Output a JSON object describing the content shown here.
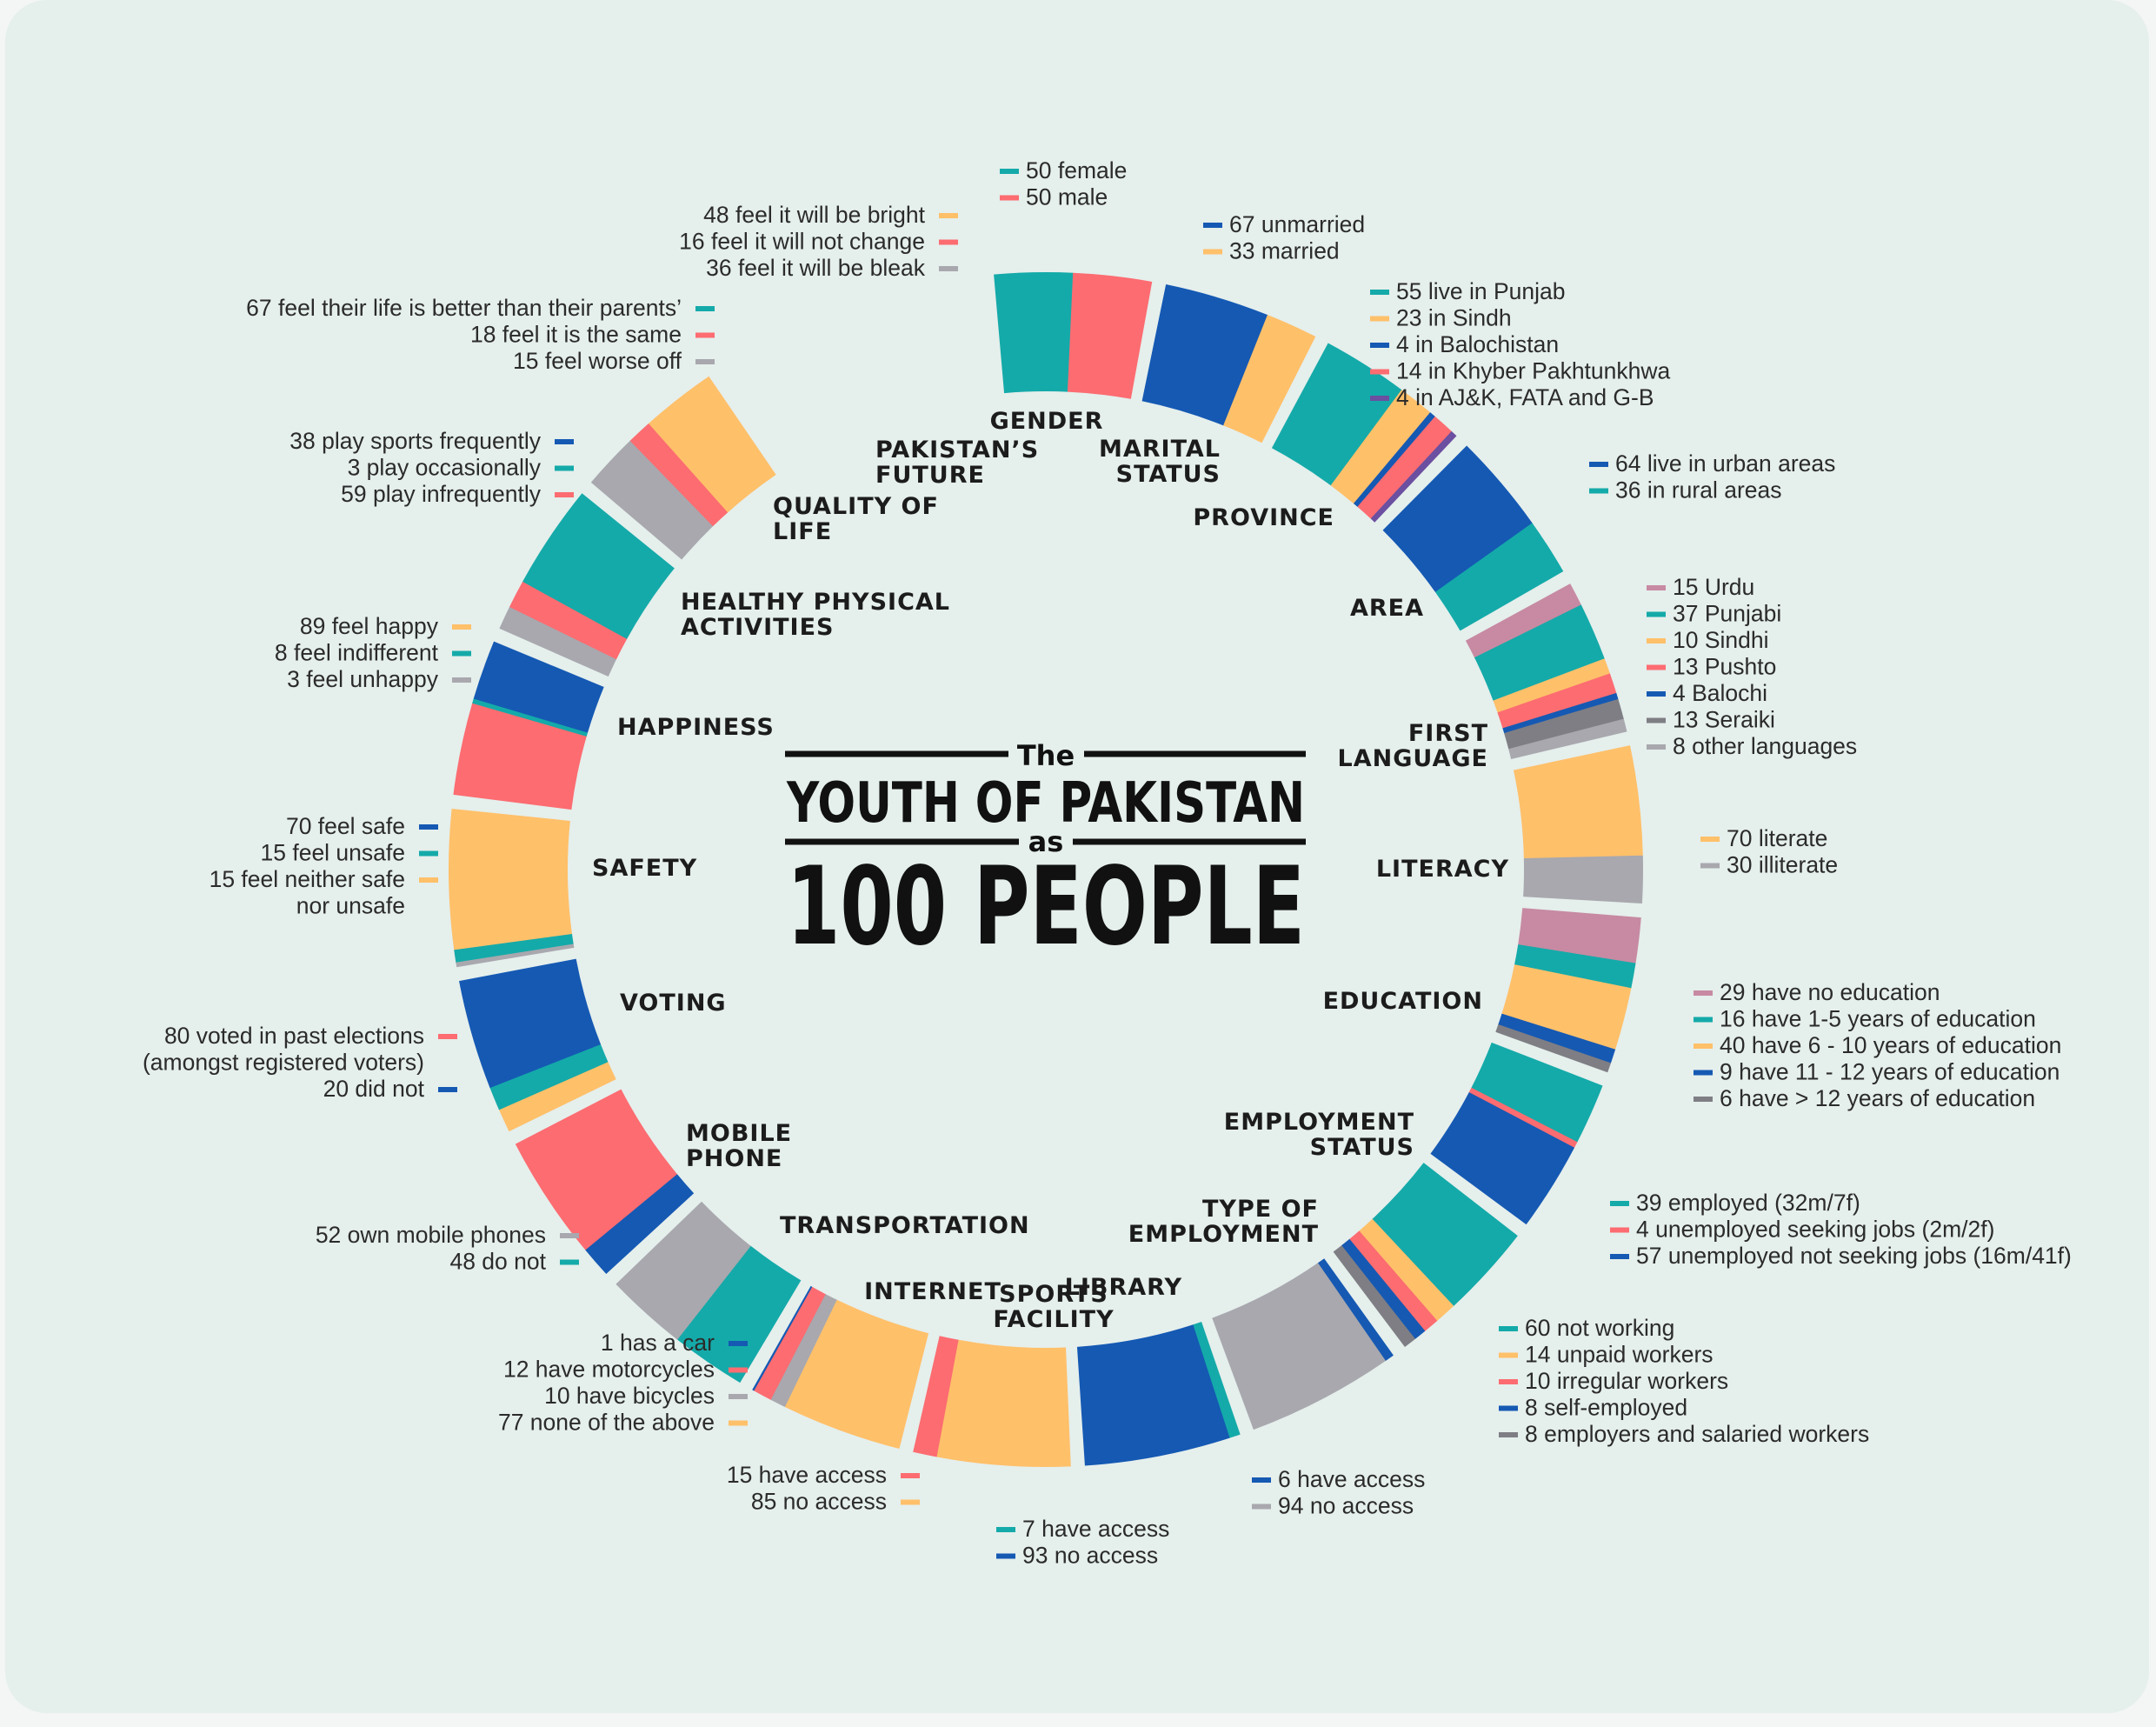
{
  "colors": {
    "teal": "#14aaa9",
    "blue": "#1559b3",
    "coral": "#fc6c71",
    "yellow": "#ffc06a",
    "grey": "#a8a8ae",
    "darkgrey": "#7e7e84",
    "mauve": "#c78aa2",
    "purple": "#6b4fa0"
  },
  "title": {
    "the": "The",
    "line1": "YOUTH OF PAKISTAN",
    "as": "as",
    "line2": "100 PEOPLE"
  },
  "chart_data": {
    "type": "pie",
    "segments": [
      {
        "category": "GENDER",
        "parts": [
          {
            "value": 50,
            "color": "teal",
            "label": "50 female"
          },
          {
            "value": 50,
            "color": "coral",
            "label": "50 male"
          }
        ]
      },
      {
        "category": "MARITAL STATUS",
        "parts": [
          {
            "value": 67,
            "color": "blue",
            "label": "67 unmarried"
          },
          {
            "value": 33,
            "color": "yellow",
            "label": "33 married"
          }
        ]
      },
      {
        "category": "PROVINCE",
        "parts": [
          {
            "value": 55,
            "color": "teal",
            "label": "55 live in Punjab"
          },
          {
            "value": 23,
            "color": "yellow",
            "label": "23 in Sindh"
          },
          {
            "value": 4,
            "color": "blue",
            "label": "4 in Balochistan"
          },
          {
            "value": 14,
            "color": "coral",
            "label": "14 in Khyber Pakhtunkhwa"
          },
          {
            "value": 4,
            "color": "purple",
            "label": "4 in AJ&K, FATA and G-B"
          }
        ]
      },
      {
        "category": "AREA",
        "parts": [
          {
            "value": 64,
            "color": "blue",
            "label": "64 live in urban areas"
          },
          {
            "value": 36,
            "color": "teal",
            "label": "36 in rural areas"
          }
        ]
      },
      {
        "category": "FIRST LANGUAGE",
        "parts": [
          {
            "value": 15,
            "color": "mauve",
            "label": "15 Urdu"
          },
          {
            "value": 37,
            "color": "teal",
            "label": "37 Punjabi"
          },
          {
            "value": 10,
            "color": "yellow",
            "label": "10 Sindhi"
          },
          {
            "value": 13,
            "color": "coral",
            "label": "13 Pushto"
          },
          {
            "value": 4,
            "color": "blue",
            "label": "4 Balochi"
          },
          {
            "value": 13,
            "color": "darkgrey",
            "label": "13 Seraiki"
          },
          {
            "value": 8,
            "color": "grey",
            "label": "8 other languages"
          }
        ]
      },
      {
        "category": "LITERACY",
        "parts": [
          {
            "value": 70,
            "color": "yellow",
            "label": "70 literate"
          },
          {
            "value": 30,
            "color": "grey",
            "label": "30 illiterate"
          }
        ]
      },
      {
        "category": "EDUCATION",
        "parts": [
          {
            "value": 29,
            "color": "mauve",
            "label": "29 have no education"
          },
          {
            "value": 16,
            "color": "teal",
            "label": "16 have 1-5 years of education"
          },
          {
            "value": 40,
            "color": "yellow",
            "label": "40 have 6 - 10 years of education"
          },
          {
            "value": 9,
            "color": "blue",
            "label": "9 have 11 - 12 years of education"
          },
          {
            "value": 6,
            "color": "darkgrey",
            "label": "6 have > 12 years of education"
          }
        ]
      },
      {
        "category": "EMPLOYMENT STATUS",
        "parts": [
          {
            "value": 39,
            "color": "teal",
            "label": "39 employed (32m/7f)"
          },
          {
            "value": 4,
            "color": "coral",
            "label": "4 unemployed seeking jobs (2m/2f)"
          },
          {
            "value": 57,
            "color": "blue",
            "label": "57 unemployed not seeking jobs (16m/41f)"
          }
        ]
      },
      {
        "category": "TYPE OF EMPLOYMENT",
        "parts": [
          {
            "value": 60,
            "color": "teal",
            "label": "60 not working"
          },
          {
            "value": 14,
            "color": "yellow",
            "label": "14 unpaid workers"
          },
          {
            "value": 10,
            "color": "coral",
            "label": "10 irregular workers"
          },
          {
            "value": 8,
            "color": "blue",
            "label": "8 self-employed"
          },
          {
            "value": 8,
            "color": "darkgrey",
            "label": "8 employers and salaried workers"
          }
        ]
      },
      {
        "category": "LIBRARY",
        "parts": [
          {
            "value": 6,
            "color": "blue",
            "label": "6 have access"
          },
          {
            "value": 94,
            "color": "grey",
            "label": "94 no access"
          }
        ]
      },
      {
        "category": "SPORTS FACILITY",
        "parts": [
          {
            "value": 7,
            "color": "teal",
            "label": "7 have access"
          },
          {
            "value": 93,
            "color": "blue",
            "label": "93 no access"
          }
        ]
      },
      {
        "category": "INTERNET",
        "parts": [
          {
            "value": 85,
            "color": "yellow",
            "label": "85 no access"
          },
          {
            "value": 15,
            "color": "coral",
            "label": "15 have access"
          }
        ]
      },
      {
        "category": "TRANSPORTATION",
        "parts": [
          {
            "value": 77,
            "color": "yellow",
            "label": "77 none of the above"
          },
          {
            "value": 10,
            "color": "grey",
            "label": "10 have bicycles"
          },
          {
            "value": 12,
            "color": "coral",
            "label": "12 have motorcycles"
          },
          {
            "value": 1,
            "color": "blue",
            "label": "1 has a car"
          }
        ]
      },
      {
        "category": "MOBILE PHONE",
        "parts": [
          {
            "value": 48,
            "color": "teal",
            "label": "48 do not"
          },
          {
            "value": 52,
            "color": "grey",
            "label": "52 own mobile phones"
          }
        ]
      },
      {
        "category": "VOTING",
        "parts": [
          {
            "value": 20,
            "color": "blue",
            "label": "20 did not"
          },
          {
            "value": 80,
            "color": "coral",
            "label": "80 voted in past elections (amongst registered voters)"
          }
        ]
      },
      {
        "category": "SAFETY",
        "parts": [
          {
            "value": 15,
            "color": "yellow",
            "label": "15 feel neither safe nor unsafe"
          },
          {
            "value": 15,
            "color": "teal",
            "label": "15 feel unsafe"
          },
          {
            "value": 70,
            "color": "blue",
            "label": "70 feel safe"
          }
        ]
      },
      {
        "category": "HAPPINESS",
        "parts": [
          {
            "value": 3,
            "color": "grey",
            "label": "3 feel unhappy"
          },
          {
            "value": 8,
            "color": "teal",
            "label": "8 feel indifferent"
          },
          {
            "value": 89,
            "color": "yellow",
            "label": "89 feel happy"
          }
        ]
      },
      {
        "category": "HEALTHY PHYSICAL ACTIVITIES",
        "parts": [
          {
            "value": 59,
            "color": "coral",
            "label": "59 play infrequently"
          },
          {
            "value": 3,
            "color": "teal",
            "label": "3 play occasionally"
          },
          {
            "value": 38,
            "color": "blue",
            "label": "38 play sports frequently"
          }
        ]
      },
      {
        "category": "QUALITY OF LIFE",
        "parts": [
          {
            "value": 15,
            "color": "grey",
            "label": "15 feel worse off"
          },
          {
            "value": 18,
            "color": "coral",
            "label": "18  feel it is the same"
          },
          {
            "value": 67,
            "color": "teal",
            "label": "67 feel their life is better than their parents’"
          }
        ]
      },
      {
        "category": "PAKISTAN’S FUTURE",
        "parts": [
          {
            "value": 36,
            "color": "grey",
            "label": "36 feel it will be bleak"
          },
          {
            "value": 16,
            "color": "coral",
            "label": "16 feel it will not change"
          },
          {
            "value": 48,
            "color": "yellow",
            "label": "48 feel it will be bright"
          }
        ]
      }
    ]
  }
}
